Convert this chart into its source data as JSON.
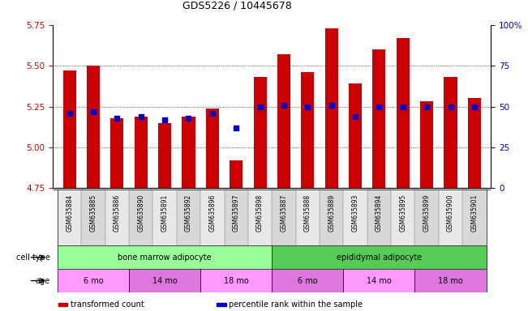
{
  "title": "GDS5226 / 10445678",
  "samples": [
    "GSM635884",
    "GSM635885",
    "GSM635886",
    "GSM635890",
    "GSM635891",
    "GSM635892",
    "GSM635896",
    "GSM635897",
    "GSM635898",
    "GSM635887",
    "GSM635888",
    "GSM635889",
    "GSM635893",
    "GSM635894",
    "GSM635895",
    "GSM635899",
    "GSM635900",
    "GSM635901"
  ],
  "transformed_count": [
    5.47,
    5.5,
    5.18,
    5.19,
    5.15,
    5.19,
    5.24,
    4.92,
    5.43,
    5.57,
    5.46,
    5.73,
    5.39,
    5.6,
    5.67,
    5.28,
    5.43,
    5.3
  ],
  "percentile_rank": [
    46,
    47,
    43,
    44,
    42,
    43,
    46,
    37,
    50,
    51,
    50,
    51,
    44,
    50,
    50,
    50,
    50,
    50
  ],
  "ylim_left": [
    4.75,
    5.75
  ],
  "ylim_right": [
    0,
    100
  ],
  "yticks_left": [
    4.75,
    5.0,
    5.25,
    5.5,
    5.75
  ],
  "yticks_right": [
    0,
    25,
    50,
    75,
    100
  ],
  "ytick_labels_right": [
    "0",
    "25",
    "50",
    "75",
    "100%"
  ],
  "bar_color": "#cc0000",
  "blue_color": "#0000cc",
  "cell_type_groups": [
    {
      "label": "bone marrow adipocyte",
      "start": 0,
      "end": 9,
      "color": "#99ff99"
    },
    {
      "label": "epididymal adipocyte",
      "start": 9,
      "end": 18,
      "color": "#55cc55"
    }
  ],
  "age_groups": [
    {
      "label": "6 mo",
      "start": 0,
      "end": 3,
      "color": "#ff99ff"
    },
    {
      "label": "14 mo",
      "start": 3,
      "end": 6,
      "color": "#dd77dd"
    },
    {
      "label": "18 mo",
      "start": 6,
      "end": 9,
      "color": "#ff99ff"
    },
    {
      "label": "6 mo",
      "start": 9,
      "end": 12,
      "color": "#dd77dd"
    },
    {
      "label": "14 mo",
      "start": 12,
      "end": 15,
      "color": "#ff99ff"
    },
    {
      "label": "18 mo",
      "start": 15,
      "end": 18,
      "color": "#dd77dd"
    }
  ],
  "legend_items": [
    {
      "label": "transformed count",
      "color": "#cc0000"
    },
    {
      "label": "percentile rank within the sample",
      "color": "#0000cc"
    }
  ],
  "cell_type_label": "cell type",
  "age_label": "age",
  "bar_width": 0.55,
  "base_value": 4.75,
  "left_tick_color": "#cc0000",
  "right_tick_color": "#0000cc",
  "title_fontsize": 9,
  "tick_fontsize": 7.5,
  "xtick_fontsize": 5.5,
  "annot_fontsize": 7,
  "legend_fontsize": 7
}
